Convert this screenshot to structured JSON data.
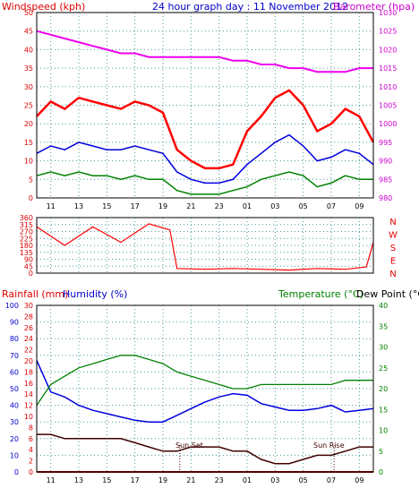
{
  "header": {
    "windspeed_label": "Windspeed (kph)",
    "title": "24 hour graph day : 11 November 2012",
    "barometer_label": "Barometer (hpa)"
  },
  "bottom_header": {
    "rainfall_label": "Rainfall (mm)",
    "humidity_label": "Humidity (%)",
    "temperature_label": "Temperature (°C)",
    "dewpoint_label": "Dew Point (°C)"
  },
  "compass": [
    "N",
    "W",
    "S",
    "E",
    "N"
  ],
  "annotations": {
    "sunset": "Sun Set",
    "sunrise": "Sun Rise"
  },
  "colors": {
    "background": "#ffffff",
    "grid": "#4a9a9a",
    "axis": "#000000",
    "wind_gust": "#ff0000",
    "wind_avg": "#0000dd",
    "wind_low": "#008000",
    "barometer": "#ee00ee",
    "wind_dir": "#ff0000",
    "temperature": "#008000",
    "humidity": "#0000dd",
    "dewpoint": "#400000",
    "rainfall": "#b00000",
    "label_red": "#dd0000",
    "label_magenta": "#cc00cc",
    "label_blue": "#0000cc",
    "label_green": "#008000"
  },
  "x_ticks": [
    "11",
    "13",
    "15",
    "17",
    "19",
    "21",
    "23",
    "01",
    "03",
    "05",
    "07",
    "09"
  ],
  "chart_data": [
    {
      "type": "line",
      "title": "24 hour graph day : 11 November 2012",
      "ylabel": "Windspeed (kph)",
      "ylabel_right": "Barometer (hpa)",
      "ylim": [
        0,
        50
      ],
      "ylim_right": [
        980,
        1030
      ],
      "yticks": [
        0,
        5,
        10,
        15,
        20,
        25,
        30,
        35,
        40,
        45,
        50
      ],
      "yticks_right": [
        980,
        985,
        990,
        995,
        1000,
        1005,
        1010,
        1015,
        1020,
        1025,
        1030
      ],
      "x_hours": [
        10,
        11,
        12,
        13,
        14,
        15,
        16,
        17,
        18,
        19,
        20,
        21,
        22,
        23,
        24,
        25,
        26,
        27,
        28,
        29,
        30,
        31,
        32,
        33,
        34
      ],
      "series": [
        {
          "key": "gust",
          "values": [
            22,
            26,
            24,
            27,
            26,
            25,
            24,
            26,
            25,
            23,
            13,
            10,
            8,
            8,
            9,
            18,
            22,
            27,
            29,
            25,
            18,
            20,
            24,
            22,
            15
          ]
        },
        {
          "key": "avg",
          "values": [
            12,
            14,
            13,
            15,
            14,
            13,
            13,
            14,
            13,
            12,
            7,
            5,
            4,
            4,
            5,
            9,
            12,
            15,
            17,
            14,
            10,
            11,
            13,
            12,
            9
          ]
        },
        {
          "key": "low",
          "values": [
            6,
            7,
            6,
            7,
            6,
            6,
            5,
            6,
            5,
            5,
            2,
            1,
            1,
            1,
            2,
            3,
            5,
            6,
            7,
            6,
            3,
            4,
            6,
            5,
            5
          ]
        },
        {
          "key": "barometer",
          "values": [
            1025,
            1024,
            1023,
            1022,
            1021,
            1020,
            1019,
            1019,
            1018,
            1018,
            1018,
            1018,
            1018,
            1018,
            1017,
            1017,
            1016,
            1016,
            1015,
            1015,
            1014,
            1014,
            1014,
            1015,
            1015
          ]
        }
      ]
    },
    {
      "type": "line",
      "ylim": [
        0,
        360
      ],
      "yticks": [
        0,
        45,
        90,
        135,
        180,
        225,
        270,
        315,
        360
      ],
      "x_hours": [
        10,
        12,
        14,
        16,
        18,
        19.5,
        20,
        22,
        24,
        26,
        28,
        30,
        32,
        33.5,
        34
      ],
      "series": [
        {
          "key": "wind_direction",
          "values": [
            300,
            180,
            300,
            200,
            320,
            280,
            30,
            25,
            30,
            25,
            20,
            30,
            25,
            40,
            200
          ]
        }
      ]
    },
    {
      "type": "line",
      "ylabel_left_outer": "Rainfall (mm)",
      "ylabel_left_inner": "Humidity (%)",
      "ylabel_right": "Temperature (°C)",
      "ylim_rainfall": [
        0,
        30
      ],
      "ylim_humidity": [
        0,
        100
      ],
      "ylim_temperature": [
        0,
        40
      ],
      "yticks_rainfall": [
        0,
        2,
        4,
        6,
        8,
        10,
        12,
        14,
        16,
        18,
        20,
        22,
        24,
        26,
        28,
        30
      ],
      "yticks_humidity": [
        0,
        10,
        20,
        30,
        40,
        50,
        60,
        70,
        80,
        90,
        100
      ],
      "yticks_temperature": [
        0,
        5,
        10,
        15,
        20,
        25,
        30,
        35,
        40
      ],
      "x_hours": [
        10,
        11,
        12,
        13,
        14,
        15,
        16,
        17,
        18,
        19,
        20,
        21,
        22,
        23,
        24,
        25,
        26,
        27,
        28,
        29,
        30,
        31,
        32,
        33,
        34
      ],
      "series": [
        {
          "key": "humidity",
          "values": [
            67,
            48,
            45,
            40,
            37,
            35,
            33,
            31,
            30,
            30,
            34,
            38,
            42,
            45,
            47,
            46,
            41,
            39,
            37,
            37,
            38,
            40,
            36,
            37,
            38
          ]
        },
        {
          "key": "temperature",
          "values": [
            16,
            21,
            23,
            25,
            26,
            27,
            28,
            28,
            27,
            26,
            24,
            23,
            22,
            21,
            20,
            20,
            21,
            21,
            21,
            21,
            21,
            21,
            22,
            22,
            22
          ]
        },
        {
          "key": "dewpoint",
          "values": [
            9,
            9,
            8,
            8,
            8,
            8,
            8,
            7,
            6,
            5,
            5,
            6,
            6,
            6,
            5,
            5,
            3,
            2,
            2,
            3,
            4,
            4,
            5,
            6,
            6
          ]
        },
        {
          "key": "rainfall",
          "values": [
            0,
            0,
            0,
            0,
            0,
            0,
            0,
            0,
            0,
            0,
            0,
            0,
            0,
            0,
            0,
            0,
            0,
            0,
            0,
            0,
            0,
            0,
            0,
            0,
            0
          ]
        }
      ]
    }
  ]
}
